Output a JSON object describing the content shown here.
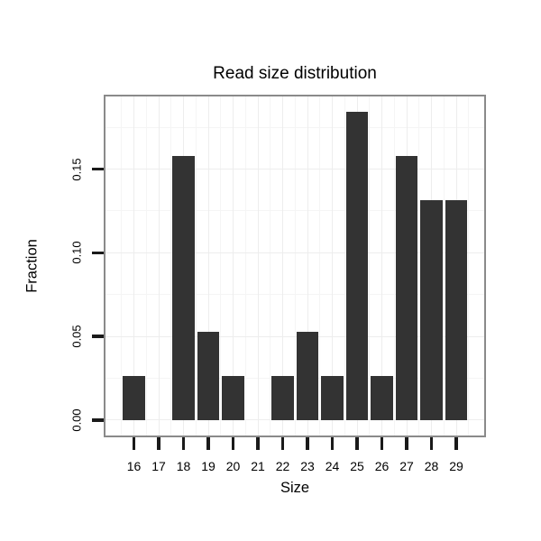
{
  "chart_data": {
    "type": "bar",
    "title": "Read size distribution",
    "xlabel": "Size",
    "ylabel": "Fraction",
    "categories": [
      "16",
      "17",
      "18",
      "19",
      "20",
      "21",
      "22",
      "23",
      "24",
      "25",
      "26",
      "27",
      "28",
      "29"
    ],
    "values": [
      0.02632,
      0,
      0.15789,
      0.05263,
      0.02632,
      0,
      0.02632,
      0.05263,
      0.02632,
      0.18421,
      0.02632,
      0.15789,
      0.13158,
      0.13158
    ],
    "y_ticks": [
      {
        "label": "0.00",
        "value": 0
      },
      {
        "label": "0.05",
        "value": 0.05
      },
      {
        "label": "0.10",
        "value": 0.1
      },
      {
        "label": "0.15",
        "value": 0.15
      }
    ],
    "y_minor": [
      0.025,
      0.075,
      0.125,
      0.175
    ],
    "ylim": [
      -0.00921,
      0.19342
    ],
    "grid": true,
    "legend": "none",
    "colors": {
      "bar": "#333333",
      "panel_background": "#ffffff",
      "panel_border": "#8a8a8a",
      "grid_major": "#ededed",
      "grid_minor": "#f5f5f5",
      "tick": "#1a1a1a",
      "text": "#000000"
    }
  }
}
